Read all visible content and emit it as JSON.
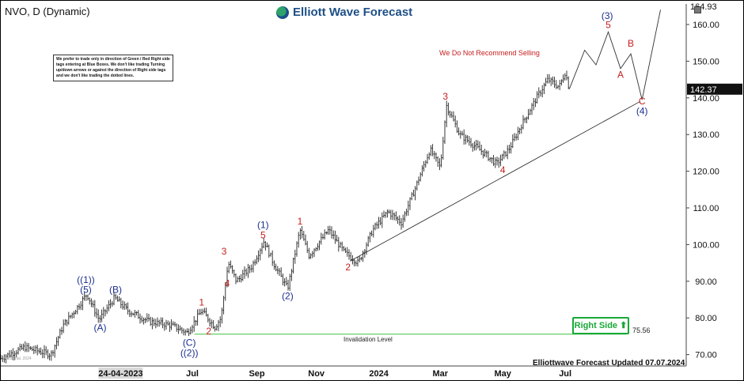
{
  "header": {
    "ticker": "NVO, D (Dynamic)"
  },
  "logo": {
    "text": "Elliott Wave Forecast",
    "icon": "wave-logo-icon"
  },
  "note": "We prefer to trade only in direction of Green / Red Right side tags entering at Blue Boxes. We don't like trading Turning up/down arrows or against the direction of Right side tags and we don't like trading the dotted lines.",
  "recommendation": "We Do Not Recommend Selling",
  "right_side": {
    "label": "Right Side",
    "icon": "arrow-up-icon"
  },
  "invalidation": {
    "label": "Invalidation Level",
    "price_label": "75.56"
  },
  "footer": {
    "updated": "Elliottwave Forecast Updated 07.07.2024",
    "watermark": "© eSignal, 2024"
  },
  "colors": {
    "bars": "#222222",
    "red_label": "#c81e1e",
    "blue_label": "#1b2f8f",
    "level_line": "#3cc13c",
    "right_side": "#19a837",
    "last_price_bg": "#111111"
  },
  "chart_data": {
    "type": "ohlc-bar",
    "title": "NVO, D (Dynamic)",
    "ylim": [
      68,
      166
    ],
    "y_ticks": [
      "70.00",
      "80.00",
      "90.00",
      "100.00",
      "110.00",
      "120.00",
      "130.00",
      "140.00",
      "150.00",
      "160.00"
    ],
    "x_tick_labels": [
      "24-04-2023",
      "Jul",
      "Sep",
      "Nov",
      "2024",
      "Mar",
      "May",
      "Jul"
    ],
    "price_tags": {
      "high": "164.93",
      "last": "142.37"
    },
    "path": [
      {
        "d": "2022-12-28",
        "p": 69
      },
      {
        "d": "2023-01-20",
        "p": 72
      },
      {
        "d": "2023-02-15",
        "p": 70
      },
      {
        "d": "2023-02-27",
        "p": 78
      },
      {
        "d": "2023-03-13",
        "p": 83
      },
      {
        "d": "2023-03-22",
        "p": 86.5
      },
      {
        "d": "2023-04-03",
        "p": 79.5
      },
      {
        "d": "2023-04-18",
        "p": 85.5
      },
      {
        "d": "2023-05-01",
        "p": 82
      },
      {
        "d": "2023-05-22",
        "p": 79
      },
      {
        "d": "2023-06-12",
        "p": 78
      },
      {
        "d": "2023-06-28",
        "p": 76
      },
      {
        "d": "2023-07-12",
        "p": 82
      },
      {
        "d": "2023-07-25",
        "p": 77.5
      },
      {
        "d": "2023-07-31",
        "p": 80
      },
      {
        "d": "2023-08-07",
        "p": 95
      },
      {
        "d": "2023-08-15",
        "p": 90
      },
      {
        "d": "2023-08-30",
        "p": 94
      },
      {
        "d": "2023-09-11",
        "p": 101
      },
      {
        "d": "2023-09-20",
        "p": 95
      },
      {
        "d": "2023-10-04",
        "p": 88
      },
      {
        "d": "2023-10-16",
        "p": 104
      },
      {
        "d": "2023-10-25",
        "p": 97
      },
      {
        "d": "2023-11-13",
        "p": 104
      },
      {
        "d": "2023-11-28",
        "p": 98
      },
      {
        "d": "2023-12-12",
        "p": 95
      },
      {
        "d": "2023-12-26",
        "p": 104
      },
      {
        "d": "2024-01-10",
        "p": 109
      },
      {
        "d": "2024-01-23",
        "p": 106
      },
      {
        "d": "2024-02-05",
        "p": 115
      },
      {
        "d": "2024-02-20",
        "p": 126
      },
      {
        "d": "2024-03-01",
        "p": 121
      },
      {
        "d": "2024-03-07",
        "p": 138
      },
      {
        "d": "2024-03-20",
        "p": 130
      },
      {
        "d": "2024-04-08",
        "p": 126
      },
      {
        "d": "2024-04-25",
        "p": 122
      },
      {
        "d": "2024-05-07",
        "p": 126
      },
      {
        "d": "2024-05-20",
        "p": 133
      },
      {
        "d": "2024-06-03",
        "p": 140
      },
      {
        "d": "2024-06-14",
        "p": 145
      },
      {
        "d": "2024-06-25",
        "p": 143
      },
      {
        "d": "2024-07-01",
        "p": 147
      },
      {
        "d": "2024-07-05",
        "p": 142.4
      }
    ],
    "projection": [
      {
        "d": "2024-07-05",
        "p": 142.4
      },
      {
        "d": "2024-07-20",
        "p": 153
      },
      {
        "d": "2024-07-31",
        "p": 149
      },
      {
        "d": "2024-08-12",
        "p": 158
      },
      {
        "d": "2024-08-24",
        "p": 148
      },
      {
        "d": "2024-09-03",
        "p": 152
      },
      {
        "d": "2024-09-14",
        "p": 139.5
      },
      {
        "d": "2024-10-02",
        "p": 164
      }
    ],
    "trend_line": [
      {
        "d": "2023-12-04",
        "p": 95.5
      },
      {
        "d": "2024-09-12",
        "p": 139
      }
    ],
    "invalidation_level": 75.56,
    "wave_labels": [
      {
        "text": "((1))",
        "d": "2023-03-21",
        "p": 89.5,
        "color": "blue"
      },
      {
        "text": "(5)",
        "d": "2023-03-21",
        "p": 86.8,
        "color": "blue"
      },
      {
        "text": "(A)",
        "d": "2023-04-04",
        "p": 76.5,
        "color": "blue"
      },
      {
        "text": "(B)",
        "d": "2023-04-19",
        "p": 86.8,
        "color": "blue"
      },
      {
        "text": "(C)",
        "d": "2023-06-30",
        "p": 72.4,
        "color": "blue"
      },
      {
        "text": "((2))",
        "d": "2023-06-30",
        "p": 69.6,
        "color": "blue"
      },
      {
        "text": "1",
        "d": "2023-07-12",
        "p": 83.4,
        "color": "red"
      },
      {
        "text": "2",
        "d": "2023-07-19",
        "p": 75.5,
        "color": "red"
      },
      {
        "text": "3",
        "d": "2023-08-03",
        "p": 97.3,
        "color": "red"
      },
      {
        "text": "4",
        "d": "2023-08-06",
        "p": 88.6,
        "color": "red"
      },
      {
        "text": "(1)",
        "d": "2023-09-10",
        "p": 104.5,
        "color": "blue"
      },
      {
        "text": "5",
        "d": "2023-09-10",
        "p": 101.7,
        "color": "red"
      },
      {
        "text": "(2)",
        "d": "2023-10-04",
        "p": 85.1,
        "color": "blue"
      },
      {
        "text": "1",
        "d": "2023-10-16",
        "p": 105.5,
        "color": "red"
      },
      {
        "text": "2",
        "d": "2023-12-02",
        "p": 93,
        "color": "red"
      },
      {
        "text": "3",
        "d": "2024-03-06",
        "p": 139.5,
        "color": "red"
      },
      {
        "text": "4",
        "d": "2024-05-01",
        "p": 119.5,
        "color": "red"
      },
      {
        "text": "(3)",
        "d": "2024-08-11",
        "p": 161.5,
        "color": "blue"
      },
      {
        "text": "5",
        "d": "2024-08-12",
        "p": 159,
        "color": "red"
      },
      {
        "text": "A",
        "d": "2024-08-24",
        "p": 145.5,
        "color": "red"
      },
      {
        "text": "B",
        "d": "2024-09-03",
        "p": 154,
        "color": "red"
      },
      {
        "text": "C",
        "d": "2024-09-14",
        "p": 138.2,
        "color": "red"
      },
      {
        "text": "(4)",
        "d": "2024-09-14",
        "p": 135.5,
        "color": "blue"
      }
    ]
  }
}
